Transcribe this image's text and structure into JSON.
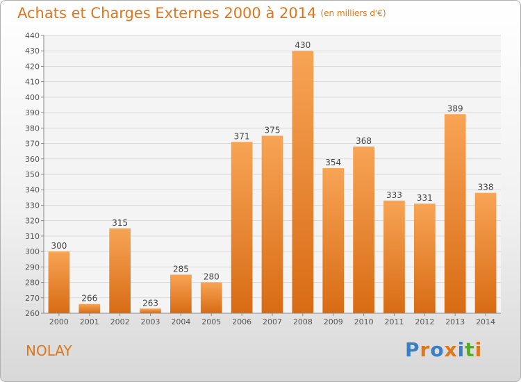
{
  "title": "Achats et Charges Externes 2000 à 2014",
  "unit_label": "(en milliers d'€)",
  "place_name": "NOLAY",
  "logo": {
    "text": "Proxiti",
    "letters": [
      "P",
      "r",
      "o",
      "x",
      "i",
      "t",
      "i"
    ],
    "colors": [
      "#3a7fc4",
      "#e0761a",
      "#3a7fc4",
      "#e0761a",
      "#3a7fc4",
      "#5aa82e",
      "#e0761a"
    ]
  },
  "colors": {
    "bar_light": "#f7a455",
    "bar_dark": "#d86b14",
    "title": "#e0761a",
    "grid": "#d9d9d9"
  },
  "chart_data": {
    "type": "bar",
    "title": "Achats et Charges Externes 2000 à 2014",
    "xlabel": "",
    "ylabel": "",
    "categories": [
      "2000",
      "2001",
      "2002",
      "2003",
      "2004",
      "2005",
      "2006",
      "2007",
      "2008",
      "2009",
      "2010",
      "2011",
      "2012",
      "2013",
      "2014"
    ],
    "values": [
      300,
      266,
      315,
      263,
      285,
      280,
      371,
      375,
      430,
      354,
      368,
      333,
      331,
      389,
      338
    ],
    "ylim": [
      260,
      440
    ],
    "yticks": [
      260,
      270,
      280,
      290,
      300,
      310,
      320,
      330,
      340,
      350,
      360,
      370,
      380,
      390,
      400,
      410,
      420,
      430,
      440
    ],
    "grid": true,
    "data_labels": true
  }
}
